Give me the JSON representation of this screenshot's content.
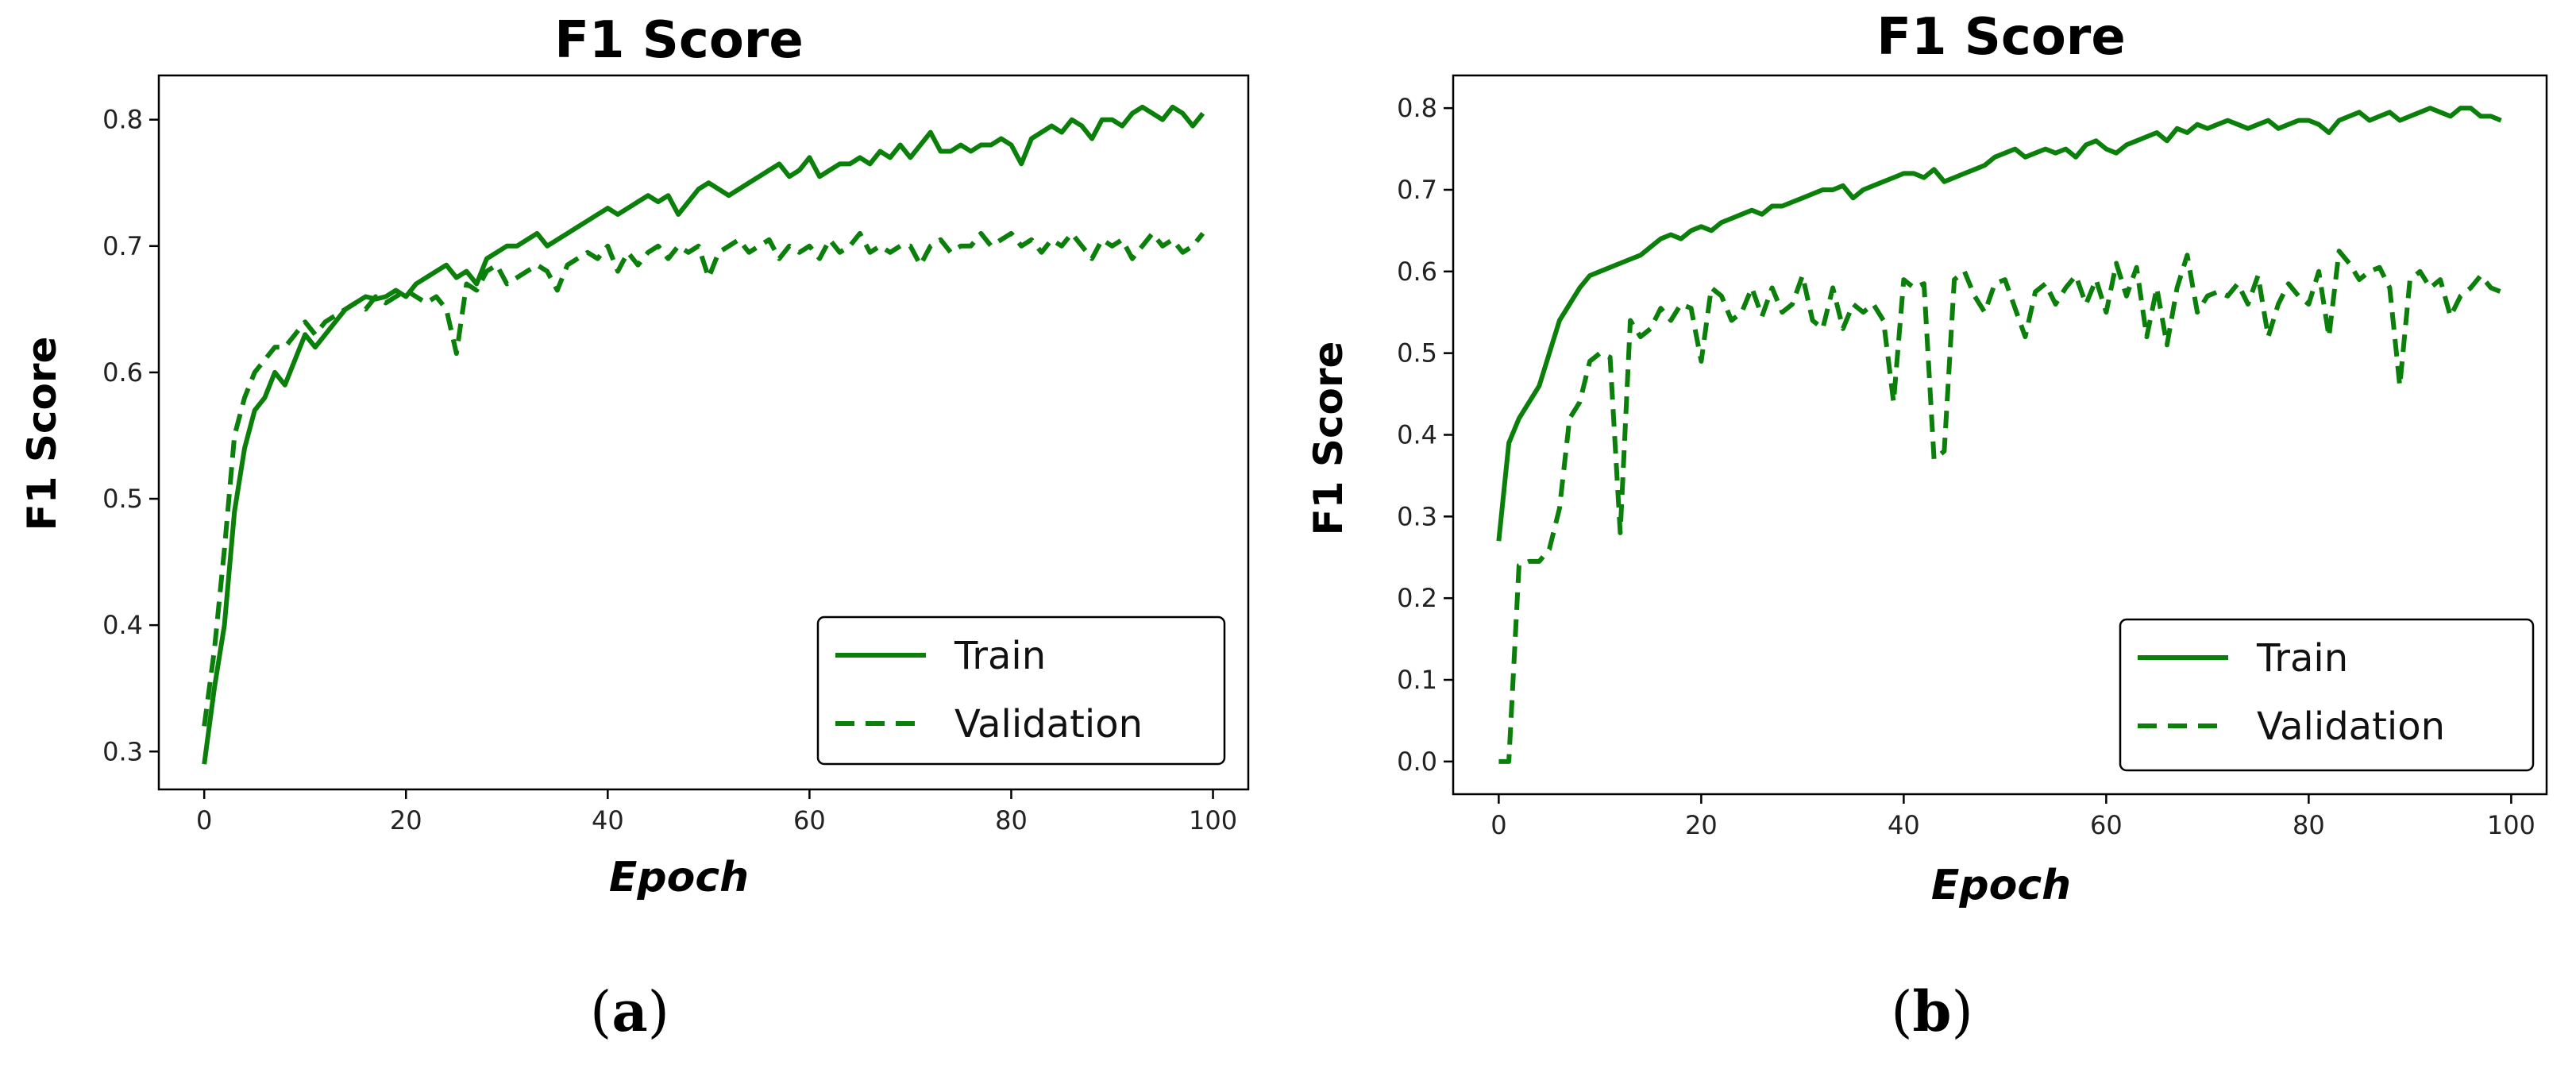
{
  "panels": [
    {
      "label_open": "(",
      "label_letter": "a",
      "label_close": ")"
    },
    {
      "label_open": "(",
      "label_letter": "b",
      "label_close": ")"
    }
  ],
  "colors": {
    "line": "#0a800a",
    "axis": "#000000"
  },
  "chart_data": [
    {
      "type": "line",
      "title": "F1 Score",
      "xlabel": "Epoch",
      "ylabel": "F1 Score",
      "xlim": [
        -4.5,
        103.5
      ],
      "ylim": [
        0.27,
        0.835
      ],
      "xticks": [
        0,
        20,
        40,
        60,
        80,
        100
      ],
      "yticks": [
        0.3,
        0.4,
        0.5,
        0.6,
        0.7,
        0.8
      ],
      "ytick_labels": [
        "0.3",
        "0.4",
        "0.5",
        "0.6",
        "0.7",
        "0.8"
      ],
      "legend": {
        "position": "lower-right",
        "entries": [
          "Train",
          "Validation"
        ]
      },
      "grid": false,
      "series": [
        {
          "name": "Train",
          "style": "solid",
          "x": [
            0,
            1,
            2,
            3,
            4,
            5,
            6,
            7,
            8,
            9,
            10,
            11,
            12,
            13,
            14,
            15,
            16,
            17,
            18,
            19,
            20,
            21,
            22,
            23,
            24,
            25,
            26,
            27,
            28,
            29,
            30,
            31,
            32,
            33,
            34,
            35,
            36,
            37,
            38,
            39,
            40,
            41,
            42,
            43,
            44,
            45,
            46,
            47,
            48,
            49,
            50,
            51,
            52,
            53,
            54,
            55,
            56,
            57,
            58,
            59,
            60,
            61,
            62,
            63,
            64,
            65,
            66,
            67,
            68,
            69,
            70,
            71,
            72,
            73,
            74,
            75,
            76,
            77,
            78,
            79,
            80,
            81,
            82,
            83,
            84,
            85,
            86,
            87,
            88,
            89,
            90,
            91,
            92,
            93,
            94,
            95,
            96,
            97,
            98,
            99
          ],
          "values": [
            0.29,
            0.35,
            0.4,
            0.49,
            0.54,
            0.57,
            0.58,
            0.6,
            0.59,
            0.61,
            0.63,
            0.62,
            0.63,
            0.64,
            0.65,
            0.655,
            0.66,
            0.658,
            0.66,
            0.665,
            0.66,
            0.67,
            0.675,
            0.68,
            0.685,
            0.675,
            0.68,
            0.67,
            0.69,
            0.695,
            0.7,
            0.7,
            0.705,
            0.71,
            0.7,
            0.705,
            0.71,
            0.715,
            0.72,
            0.725,
            0.73,
            0.725,
            0.73,
            0.735,
            0.74,
            0.735,
            0.74,
            0.725,
            0.735,
            0.745,
            0.75,
            0.745,
            0.74,
            0.745,
            0.75,
            0.755,
            0.76,
            0.765,
            0.755,
            0.76,
            0.77,
            0.755,
            0.76,
            0.765,
            0.765,
            0.77,
            0.765,
            0.775,
            0.77,
            0.78,
            0.77,
            0.78,
            0.79,
            0.775,
            0.775,
            0.78,
            0.775,
            0.78,
            0.78,
            0.785,
            0.78,
            0.765,
            0.785,
            0.79,
            0.795,
            0.79,
            0.8,
            0.795,
            0.785,
            0.8,
            0.8,
            0.795,
            0.805,
            0.81,
            0.805,
            0.8,
            0.81,
            0.805,
            0.795,
            0.805
          ]
        },
        {
          "name": "Validation",
          "style": "dashed",
          "x": [
            0,
            1,
            2,
            3,
            4,
            5,
            6,
            7,
            8,
            9,
            10,
            11,
            12,
            13,
            14,
            15,
            16,
            17,
            18,
            19,
            20,
            21,
            22,
            23,
            24,
            25,
            26,
            27,
            28,
            29,
            30,
            31,
            32,
            33,
            34,
            35,
            36,
            37,
            38,
            39,
            40,
            41,
            42,
            43,
            44,
            45,
            46,
            47,
            48,
            49,
            50,
            51,
            52,
            53,
            54,
            55,
            56,
            57,
            58,
            59,
            60,
            61,
            62,
            63,
            64,
            65,
            66,
            67,
            68,
            69,
            70,
            71,
            72,
            73,
            74,
            75,
            76,
            77,
            78,
            79,
            80,
            81,
            82,
            83,
            84,
            85,
            86,
            87,
            88,
            89,
            90,
            91,
            92,
            93,
            94,
            95,
            96,
            97,
            98,
            99
          ],
          "values": [
            0.32,
            0.38,
            0.46,
            0.55,
            0.58,
            0.6,
            0.61,
            0.62,
            0.62,
            0.63,
            0.64,
            0.63,
            0.64,
            0.645,
            0.65,
            0.655,
            0.65,
            0.66,
            0.655,
            0.66,
            0.665,
            0.66,
            0.655,
            0.66,
            0.65,
            0.615,
            0.67,
            0.665,
            0.68,
            0.685,
            0.67,
            0.675,
            0.68,
            0.685,
            0.68,
            0.665,
            0.685,
            0.69,
            0.695,
            0.69,
            0.7,
            0.68,
            0.695,
            0.685,
            0.695,
            0.7,
            0.69,
            0.7,
            0.695,
            0.7,
            0.675,
            0.695,
            0.7,
            0.705,
            0.695,
            0.7,
            0.705,
            0.69,
            0.7,
            0.695,
            0.7,
            0.69,
            0.705,
            0.695,
            0.7,
            0.71,
            0.695,
            0.7,
            0.695,
            0.7,
            0.7,
            0.685,
            0.7,
            0.705,
            0.695,
            0.7,
            0.7,
            0.71,
            0.7,
            0.705,
            0.71,
            0.7,
            0.705,
            0.695,
            0.705,
            0.7,
            0.71,
            0.7,
            0.69,
            0.705,
            0.7,
            0.705,
            0.69,
            0.7,
            0.71,
            0.7,
            0.705,
            0.695,
            0.7,
            0.71
          ]
        }
      ]
    },
    {
      "type": "line",
      "title": "F1 Score",
      "xlabel": "Epoch",
      "ylabel": "F1 Score",
      "xlim": [
        -4.5,
        103.5
      ],
      "ylim": [
        -0.04,
        0.84
      ],
      "xticks": [
        0,
        20,
        40,
        60,
        80,
        100
      ],
      "yticks": [
        0.0,
        0.1,
        0.2,
        0.3,
        0.4,
        0.5,
        0.6,
        0.7,
        0.8
      ],
      "ytick_labels": [
        "0.0",
        "0.1",
        "0.2",
        "0.3",
        "0.4",
        "0.5",
        "0.6",
        "0.7",
        "0.8"
      ],
      "legend": {
        "position": "lower-right",
        "entries": [
          "Train",
          "Validation"
        ]
      },
      "grid": false,
      "series": [
        {
          "name": "Train",
          "style": "solid",
          "x": [
            0,
            1,
            2,
            3,
            4,
            5,
            6,
            7,
            8,
            9,
            10,
            11,
            12,
            13,
            14,
            15,
            16,
            17,
            18,
            19,
            20,
            21,
            22,
            23,
            24,
            25,
            26,
            27,
            28,
            29,
            30,
            31,
            32,
            33,
            34,
            35,
            36,
            37,
            38,
            39,
            40,
            41,
            42,
            43,
            44,
            45,
            46,
            47,
            48,
            49,
            50,
            51,
            52,
            53,
            54,
            55,
            56,
            57,
            58,
            59,
            60,
            61,
            62,
            63,
            64,
            65,
            66,
            67,
            68,
            69,
            70,
            71,
            72,
            73,
            74,
            75,
            76,
            77,
            78,
            79,
            80,
            81,
            82,
            83,
            84,
            85,
            86,
            87,
            88,
            89,
            90,
            91,
            92,
            93,
            94,
            95,
            96,
            97,
            98,
            99
          ],
          "values": [
            0.27,
            0.39,
            0.42,
            0.44,
            0.46,
            0.5,
            0.54,
            0.56,
            0.58,
            0.595,
            0.6,
            0.605,
            0.61,
            0.615,
            0.62,
            0.63,
            0.64,
            0.645,
            0.64,
            0.65,
            0.655,
            0.65,
            0.66,
            0.665,
            0.67,
            0.675,
            0.67,
            0.68,
            0.68,
            0.685,
            0.69,
            0.695,
            0.7,
            0.7,
            0.705,
            0.69,
            0.7,
            0.705,
            0.71,
            0.715,
            0.72,
            0.72,
            0.715,
            0.725,
            0.71,
            0.715,
            0.72,
            0.725,
            0.73,
            0.74,
            0.745,
            0.75,
            0.74,
            0.745,
            0.75,
            0.745,
            0.75,
            0.74,
            0.755,
            0.76,
            0.75,
            0.745,
            0.755,
            0.76,
            0.765,
            0.77,
            0.76,
            0.775,
            0.77,
            0.78,
            0.775,
            0.78,
            0.785,
            0.78,
            0.775,
            0.78,
            0.785,
            0.775,
            0.78,
            0.785,
            0.785,
            0.78,
            0.77,
            0.785,
            0.79,
            0.795,
            0.785,
            0.79,
            0.795,
            0.785,
            0.79,
            0.795,
            0.8,
            0.795,
            0.79,
            0.8,
            0.8,
            0.79,
            0.79,
            0.785
          ]
        },
        {
          "name": "Validation",
          "style": "dashed",
          "x": [
            0,
            1,
            2,
            3,
            4,
            5,
            6,
            7,
            8,
            9,
            10,
            11,
            12,
            13,
            14,
            15,
            16,
            17,
            18,
            19,
            20,
            21,
            22,
            23,
            24,
            25,
            26,
            27,
            28,
            29,
            30,
            31,
            32,
            33,
            34,
            35,
            36,
            37,
            38,
            39,
            40,
            41,
            42,
            43,
            44,
            45,
            46,
            47,
            48,
            49,
            50,
            51,
            52,
            53,
            54,
            55,
            56,
            57,
            58,
            59,
            60,
            61,
            62,
            63,
            64,
            65,
            66,
            67,
            68,
            69,
            70,
            71,
            72,
            73,
            74,
            75,
            76,
            77,
            78,
            79,
            80,
            81,
            82,
            83,
            84,
            85,
            86,
            87,
            88,
            89,
            90,
            91,
            92,
            93,
            94,
            95,
            96,
            97,
            98,
            99
          ],
          "values": [
            0.0,
            0.0,
            0.24,
            0.245,
            0.245,
            0.26,
            0.31,
            0.42,
            0.44,
            0.49,
            0.5,
            0.495,
            0.28,
            0.54,
            0.52,
            0.53,
            0.555,
            0.54,
            0.56,
            0.555,
            0.49,
            0.58,
            0.57,
            0.54,
            0.55,
            0.58,
            0.545,
            0.58,
            0.55,
            0.56,
            0.595,
            0.54,
            0.53,
            0.58,
            0.53,
            0.56,
            0.55,
            0.56,
            0.54,
            0.44,
            0.59,
            0.58,
            0.585,
            0.37,
            0.38,
            0.59,
            0.6,
            0.57,
            0.55,
            0.585,
            0.59,
            0.555,
            0.52,
            0.575,
            0.585,
            0.56,
            0.58,
            0.595,
            0.56,
            0.59,
            0.55,
            0.61,
            0.57,
            0.605,
            0.52,
            0.58,
            0.51,
            0.58,
            0.62,
            0.55,
            0.57,
            0.575,
            0.57,
            0.585,
            0.56,
            0.595,
            0.52,
            0.56,
            0.585,
            0.57,
            0.56,
            0.6,
            0.52,
            0.625,
            0.61,
            0.59,
            0.6,
            0.605,
            0.58,
            0.46,
            0.59,
            0.6,
            0.58,
            0.59,
            0.545,
            0.57,
            0.58,
            0.595,
            0.58,
            0.575
          ]
        }
      ]
    }
  ]
}
